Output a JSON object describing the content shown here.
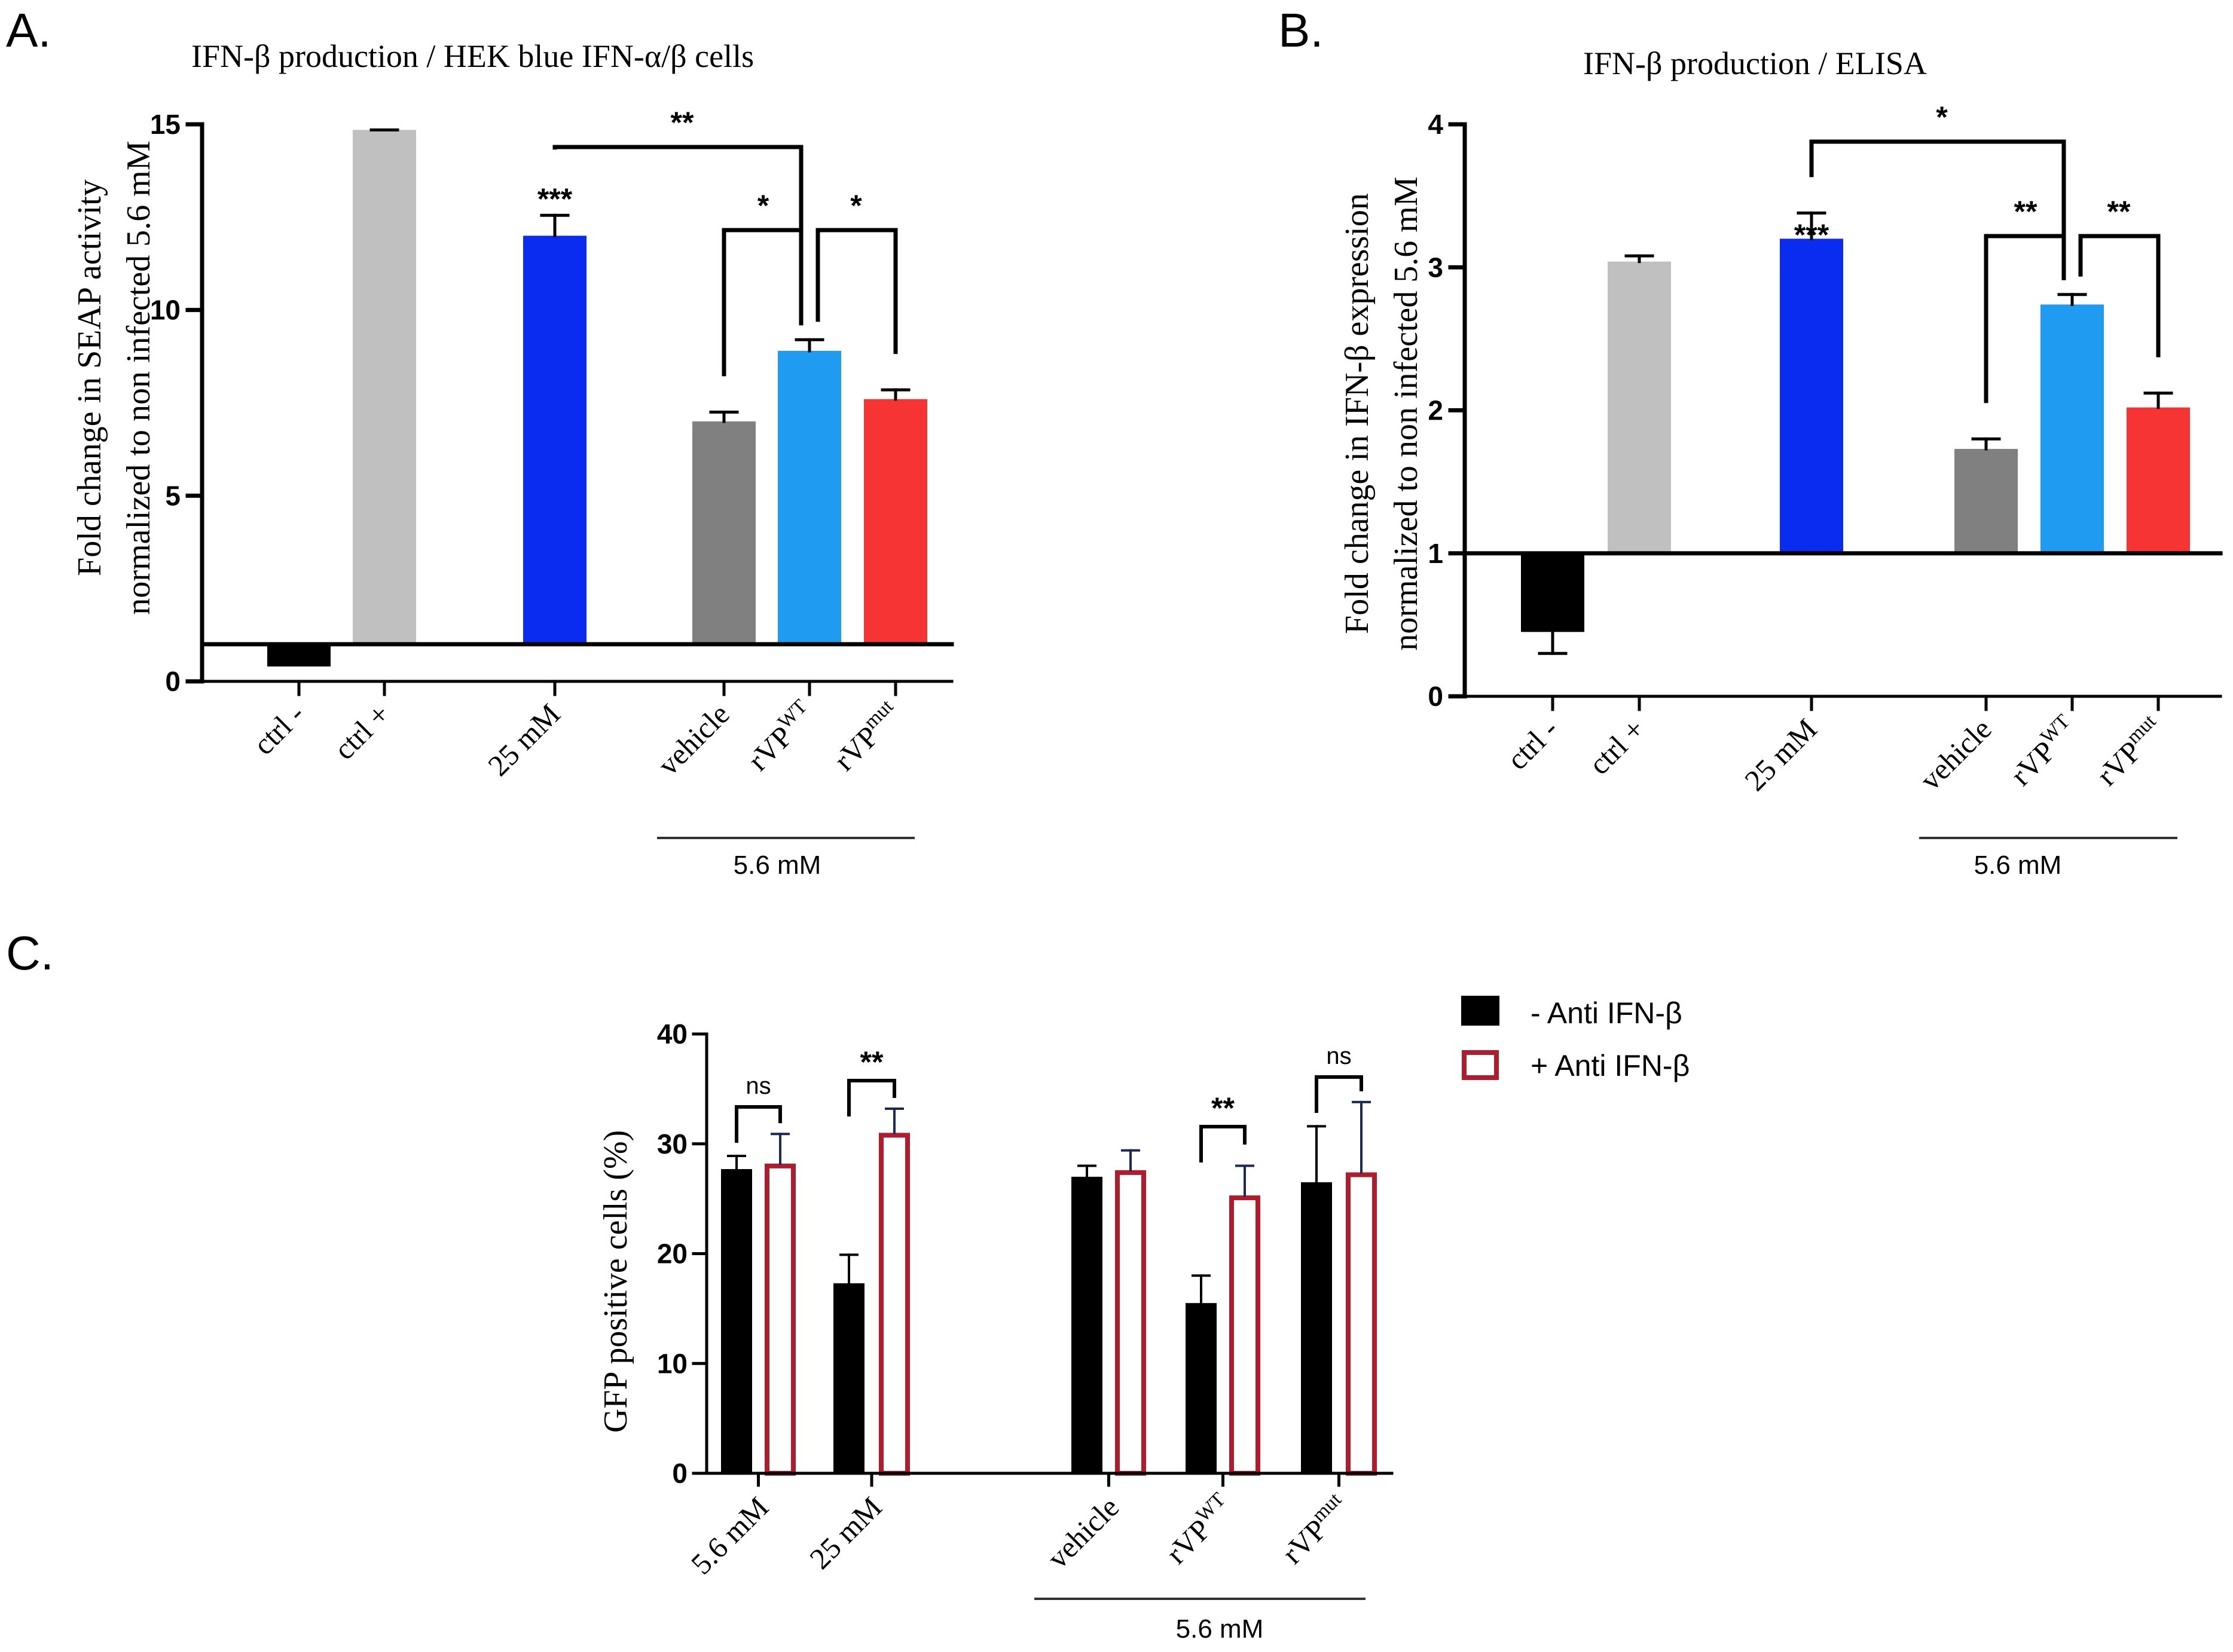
{
  "panels": {
    "A": {
      "letter": "A."
    },
    "B": {
      "letter": "B."
    },
    "C": {
      "letter": "C."
    }
  },
  "colors": {
    "black": "#000000",
    "light_gray": "#c0c0c0",
    "dark_blue": "#0a2bf0",
    "gray": "#808080",
    "light_blue": "#1f9cf2",
    "red": "#f73434",
    "outline_red": "#b01c2e",
    "navy_err": "#1b2a55"
  },
  "chart_data": [
    {
      "id": "A",
      "type": "bar",
      "title": "IFN-β production / HEK blue IFN-α/β cells",
      "ylabel_line1": "Fold change in SEAP activity",
      "ylabel_line2": "normalized to non infected 5.6 mM",
      "baseline": 1,
      "ylim": [
        0,
        15
      ],
      "yticks": [
        0,
        5,
        10,
        15
      ],
      "categories": [
        {
          "label": "ctrl -",
          "sup": ""
        },
        {
          "label": "ctrl +",
          "sup": ""
        },
        {
          "label": "25 mM",
          "sup": ""
        },
        {
          "label": "vehicle",
          "sup": ""
        },
        {
          "label": "rVP",
          "sup": "WT"
        },
        {
          "label": "rVP",
          "sup": "mut"
        }
      ],
      "values": [
        0.4,
        14.85,
        12.0,
        7.0,
        8.9,
        7.6
      ],
      "errors": [
        0,
        0,
        0.55,
        0.25,
        0.3,
        0.25
      ],
      "bar_colors": [
        "black",
        "light_gray",
        "dark_blue",
        "gray",
        "light_blue",
        "red"
      ],
      "group_label": "5.6 mM",
      "annotations": [
        {
          "text": "***",
          "target": "25 mM"
        },
        {
          "text": "**",
          "between": [
            "25 mM",
            "rVPWT"
          ]
        },
        {
          "text": "*",
          "between": [
            "vehicle",
            "rVPWT"
          ]
        },
        {
          "text": "*",
          "between": [
            "rVPWT",
            "rVPmut"
          ]
        }
      ]
    },
    {
      "id": "B",
      "type": "bar",
      "title": "IFN-β production / ELISA",
      "ylabel_line1": "Fold change in IFN-β expression",
      "ylabel_line2": "normalized to non infected 5.6 mM",
      "baseline": 1,
      "ylim": [
        0,
        4
      ],
      "yticks": [
        0,
        1,
        2,
        3,
        4
      ],
      "categories": [
        {
          "label": "ctrl -",
          "sup": ""
        },
        {
          "label": "ctrl +",
          "sup": ""
        },
        {
          "label": "25 mM",
          "sup": ""
        },
        {
          "label": "vehicle",
          "sup": ""
        },
        {
          "label": "rVP",
          "sup": "WT"
        },
        {
          "label": "rVP",
          "sup": "mut"
        }
      ],
      "values": [
        0.45,
        3.04,
        3.2,
        1.73,
        2.74,
        2.02
      ],
      "errors": [
        0.15,
        0.04,
        0.18,
        0.07,
        0.07,
        0.1
      ],
      "bar_colors": [
        "black",
        "light_gray",
        "dark_blue",
        "gray",
        "light_blue",
        "red"
      ],
      "group_label": "5.6 mM",
      "annotations": [
        {
          "text": "***",
          "target": "25 mM"
        },
        {
          "text": "*",
          "between": [
            "25 mM",
            "rVPWT"
          ]
        },
        {
          "text": "**",
          "between": [
            "vehicle",
            "rVPWT"
          ]
        },
        {
          "text": "**",
          "between": [
            "rVPWT",
            "rVPmut"
          ]
        }
      ]
    },
    {
      "id": "C",
      "type": "bar",
      "ylabel": "GFP positive cells (%)",
      "ylim": [
        0,
        40
      ],
      "yticks": [
        0,
        10,
        20,
        30,
        40
      ],
      "categories": [
        {
          "label": "5.6 mM",
          "sup": ""
        },
        {
          "label": "25 mM",
          "sup": ""
        },
        {
          "label": "vehicle",
          "sup": ""
        },
        {
          "label": "rVP",
          "sup": "WT"
        },
        {
          "label": "rVP",
          "sup": "mut"
        }
      ],
      "series": [
        {
          "name": "- Anti IFN-β",
          "values": [
            27.7,
            17.3,
            27.0,
            15.5,
            26.5
          ],
          "errors": [
            1.2,
            2.6,
            1.0,
            2.5,
            5.1
          ]
        },
        {
          "name": "+ Anti IFN-β",
          "values": [
            28.2,
            31.0,
            27.6,
            25.3,
            27.4
          ],
          "errors": [
            2.7,
            2.2,
            1.8,
            2.7,
            6.4
          ]
        }
      ],
      "group_label": "5.6 mM",
      "legend_position": "top-right",
      "annotations": [
        {
          "text": "ns",
          "target": "5.6 mM"
        },
        {
          "text": "**",
          "target": "25 mM"
        },
        {
          "text": "**",
          "target": "rVPWT"
        },
        {
          "text": "ns",
          "target": "rVPmut"
        }
      ]
    }
  ]
}
